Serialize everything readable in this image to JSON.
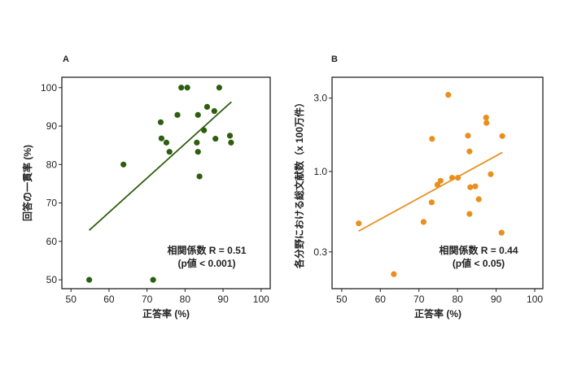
{
  "chart_data": [
    {
      "type": "scatter",
      "panel_label": "A",
      "xlabel": "正答率 (%)",
      "ylabel": "回答の一貫率 (%)",
      "xlim": [
        47.6,
        102.4
      ],
      "ylim": [
        47.7,
        102.7
      ],
      "yscale": "linear",
      "xticks": [
        50,
        60,
        70,
        80,
        90,
        100
      ],
      "yticks": [
        50,
        60,
        70,
        80,
        90,
        100
      ],
      "ytick_labels": [
        "50",
        "60",
        "70",
        "80",
        "90",
        "100"
      ],
      "color": "#2d5e0e",
      "points": [
        [
          79.0,
          100
        ],
        [
          80.6,
          100
        ],
        [
          89.0,
          100
        ],
        [
          85.8,
          95.0
        ],
        [
          87.7,
          93.9
        ],
        [
          78.0,
          92.9
        ],
        [
          83.4,
          92.9
        ],
        [
          73.6,
          91.0
        ],
        [
          85.0,
          88.9
        ],
        [
          73.8,
          86.8
        ],
        [
          75.1,
          85.7
        ],
        [
          83.1,
          85.7
        ],
        [
          88.0,
          86.7
        ],
        [
          91.8,
          87.5
        ],
        [
          92.1,
          85.7
        ],
        [
          75.9,
          83.3
        ],
        [
          83.4,
          83.3
        ],
        [
          83.8,
          76.9
        ],
        [
          63.8,
          80.0
        ],
        [
          54.8,
          50.0
        ],
        [
          71.6,
          50.0
        ]
      ],
      "trendline": [
        [
          54.8,
          62.9
        ],
        [
          92.2,
          96.3
        ]
      ],
      "annotation": [
        "相関係数 R = 0.51",
        "(p値 < 0.001)"
      ],
      "grid": false
    },
    {
      "type": "scatter",
      "panel_label": "B",
      "xlabel": "正答率 (%)",
      "ylabel": "各分野における総文献数（x 100万件）",
      "xlim": [
        47.5,
        102.1
      ],
      "ylim": [
        0.173,
        4.1
      ],
      "yscale": "log",
      "xticks": [
        50,
        60,
        70,
        80,
        90,
        100
      ],
      "yticks": [
        0.3,
        1.0,
        3.0
      ],
      "ytick_labels": [
        "0.3",
        "1.0",
        "3.0"
      ],
      "color": "#e8901e",
      "points": [
        [
          77.6,
          3.15
        ],
        [
          87.4,
          2.24
        ],
        [
          87.5,
          2.07
        ],
        [
          82.7,
          1.71
        ],
        [
          91.6,
          1.7
        ],
        [
          73.4,
          1.63
        ],
        [
          83.1,
          1.35
        ],
        [
          88.6,
          0.96
        ],
        [
          78.6,
          0.91
        ],
        [
          80.1,
          0.91
        ],
        [
          75.6,
          0.87
        ],
        [
          74.8,
          0.82
        ],
        [
          84.6,
          0.8
        ],
        [
          83.3,
          0.79
        ],
        [
          85.5,
          0.66
        ],
        [
          73.3,
          0.63
        ],
        [
          83.1,
          0.53
        ],
        [
          71.2,
          0.47
        ],
        [
          54.4,
          0.46
        ],
        [
          91.4,
          0.4
        ],
        [
          63.5,
          0.215
        ]
      ],
      "trendline": [
        [
          54.4,
          0.41
        ],
        [
          91.6,
          1.33
        ]
      ],
      "annotation": [
        "相関係数 R = 0.44",
        "(p値 < 0.05)"
      ],
      "grid": false
    }
  ]
}
